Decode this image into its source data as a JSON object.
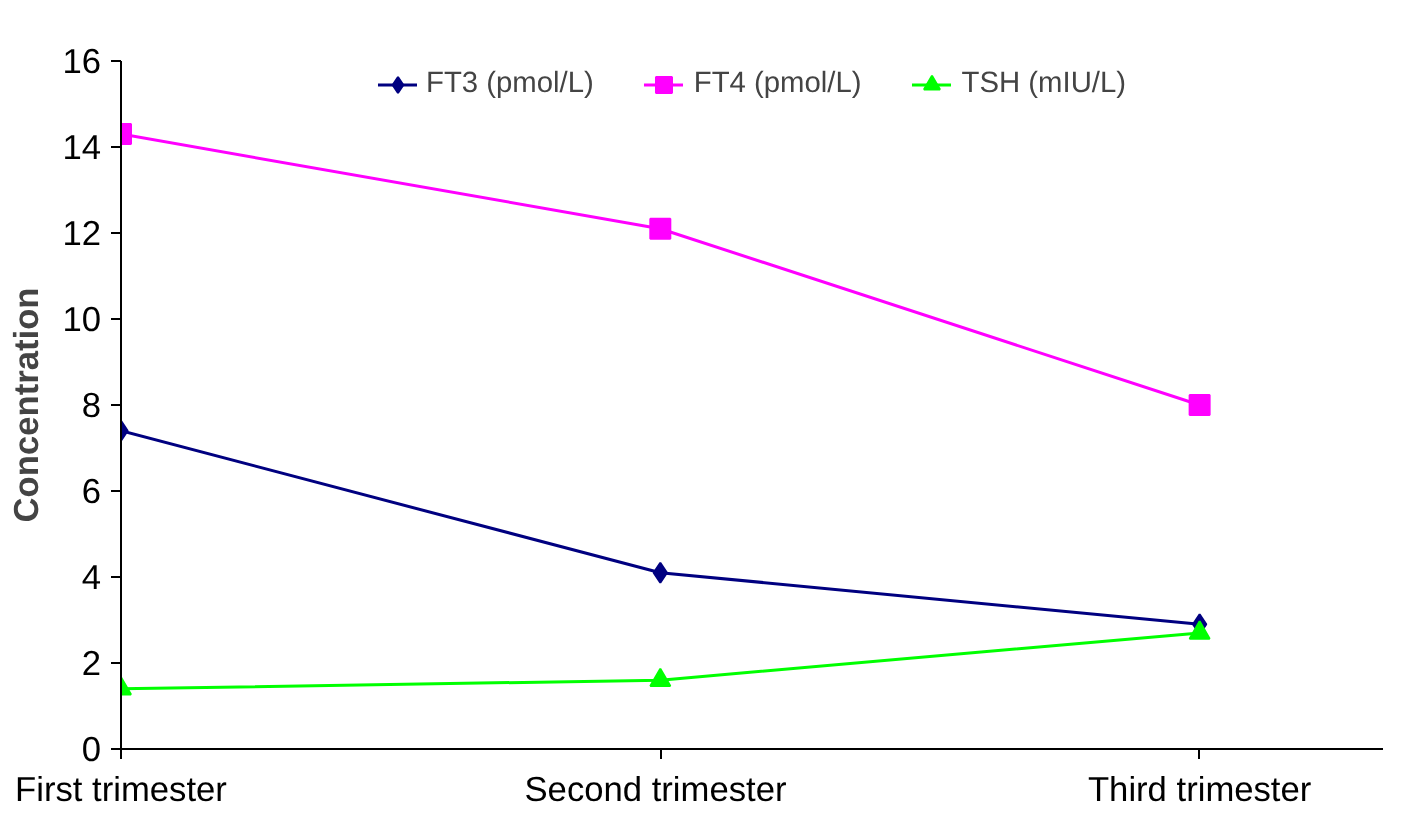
{
  "chart_data": {
    "type": "line",
    "ylabel": "Concentration",
    "categories": [
      "First trimester",
      "Second  trimester",
      "Third trimester"
    ],
    "series": [
      {
        "name": "FT3 (pmol/L)",
        "color": "#000080",
        "marker": "diamond",
        "values": [
          7.4,
          4.1,
          2.9
        ]
      },
      {
        "name": "FT4 (pmol/L)",
        "color": "#ff00ff",
        "marker": "square",
        "values": [
          14.3,
          12.1,
          8.0
        ]
      },
      {
        "name": "TSH (mIU/L)",
        "color": "#00ff00",
        "marker": "triangle",
        "values": [
          1.4,
          1.6,
          2.7
        ]
      }
    ],
    "ylim": [
      0,
      16
    ],
    "yticks": [
      0,
      2,
      4,
      6,
      8,
      10,
      12,
      14,
      16
    ],
    "grid": false,
    "legend": "top",
    "line_style": "solid"
  }
}
